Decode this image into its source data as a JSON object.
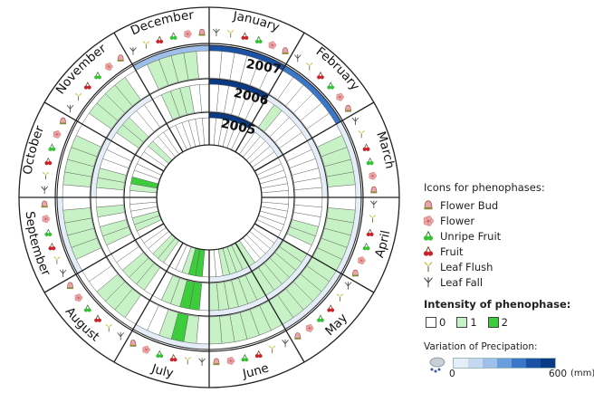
{
  "chart_data": {
    "type": "radial-heatmap",
    "title": "",
    "months": [
      "January",
      "February",
      "March",
      "April",
      "May",
      "June",
      "July",
      "August",
      "September",
      "October",
      "November",
      "December"
    ],
    "years": [
      "2005",
      "2006",
      "2007"
    ],
    "phenophases": [
      {
        "key": "flower_bud",
        "label": "Flower Bud",
        "icon": "flower-bud-icon",
        "color": "#e6a0a0"
      },
      {
        "key": "flower",
        "label": "Flower",
        "icon": "flower-icon",
        "color": "#f0a2a2"
      },
      {
        "key": "unripe_fruit",
        "label": "Unripe Fruit",
        "icon": "unripe-fruit-icon",
        "color": "#3cc23c"
      },
      {
        "key": "fruit",
        "label": "Fruit",
        "icon": "fruit-icon",
        "color": "#c8232b"
      },
      {
        "key": "leaf_flush",
        "label": "Leaf Flush",
        "icon": "leaf-flush-icon",
        "color": "#b6b45c"
      },
      {
        "key": "leaf_fall",
        "label": "Leaf Fall",
        "icon": "leaf-fall-icon",
        "color": "#555555"
      }
    ],
    "intensity": {
      "levels": [
        0,
        1,
        2
      ],
      "colors": [
        "#ffffff",
        "#c6f2c6",
        "#3ccc3c"
      ],
      "phenophase_order": [
        "leaf_fall",
        "leaf_flush",
        "fruit",
        "unripe_fruit",
        "flower",
        "flower_bud"
      ],
      "values": {
        "2005": [
          [
            0,
            0,
            0,
            0,
            0,
            0
          ],
          [
            0,
            0,
            0,
            0,
            0,
            0
          ],
          [
            0,
            0,
            0,
            0,
            0,
            0
          ],
          [
            0,
            0,
            0,
            0,
            0,
            0
          ],
          [
            0,
            0,
            0,
            0,
            0,
            1
          ],
          [
            1,
            1,
            1,
            1,
            0,
            0
          ],
          [
            0,
            2,
            2,
            1,
            0,
            0
          ],
          [
            0,
            1,
            1,
            0,
            0,
            0
          ],
          [
            0,
            1,
            1,
            0,
            0,
            0
          ],
          [
            0,
            1,
            2,
            0,
            0,
            0
          ],
          [
            0,
            0,
            1,
            0,
            0,
            0
          ],
          [
            0,
            0,
            0,
            0,
            0,
            0
          ]
        ],
        "2006": [
          [
            0,
            0,
            0,
            0,
            0,
            0
          ],
          [
            0,
            1,
            0,
            0,
            0,
            0
          ],
          [
            0,
            0,
            0,
            0,
            0,
            0
          ],
          [
            0,
            0,
            0,
            1,
            1,
            0
          ],
          [
            1,
            1,
            1,
            1,
            1,
            1
          ],
          [
            1,
            1,
            1,
            1,
            1,
            1
          ],
          [
            0,
            2,
            2,
            1,
            1,
            0
          ],
          [
            0,
            1,
            1,
            1,
            0,
            0
          ],
          [
            0,
            1,
            1,
            0,
            1,
            0
          ],
          [
            0,
            1,
            1,
            0,
            0,
            0
          ],
          [
            0,
            1,
            1,
            0,
            0,
            0
          ],
          [
            0,
            1,
            1,
            1,
            0,
            0
          ]
        ],
        "2007": [
          [
            0,
            0,
            0,
            0,
            0,
            0
          ],
          [
            0,
            0,
            0,
            0,
            0,
            0
          ],
          [
            0,
            1,
            1,
            1,
            1,
            0
          ],
          [
            0,
            1,
            1,
            1,
            1,
            1
          ],
          [
            1,
            1,
            1,
            1,
            1,
            1
          ],
          [
            1,
            1,
            1,
            1,
            1,
            1
          ],
          [
            0,
            1,
            2,
            1,
            0,
            0
          ],
          [
            0,
            1,
            1,
            1,
            0,
            0
          ],
          [
            0,
            1,
            1,
            1,
            1,
            0
          ],
          [
            0,
            1,
            1,
            1,
            1,
            0
          ],
          [
            0,
            1,
            1,
            1,
            1,
            0
          ],
          [
            0,
            1,
            1,
            1,
            1,
            0
          ]
        ]
      }
    },
    "precipitation": {
      "label": "Variation of Precipation:",
      "unit": "(mm)",
      "range": [
        0,
        600
      ],
      "scale_colors": [
        "#e4edf8",
        "#c4d8f2",
        "#9dbfe9",
        "#6a9ddc",
        "#3a77c8",
        "#1b52a3",
        "#0b3a85"
      ],
      "values_mm": {
        "2005": [
          550,
          30,
          0,
          0,
          10,
          70,
          0,
          0,
          0,
          0,
          0,
          0
        ],
        "2006": [
          520,
          40,
          5,
          0,
          40,
          10,
          0,
          0,
          0,
          30,
          40,
          0
        ],
        "2007": [
          480,
          420,
          60,
          10,
          80,
          0,
          20,
          0,
          5,
          0,
          0,
          200
        ]
      }
    }
  },
  "legend": {
    "phenophase_title": "Icons for phenophases:",
    "intensity_title": "Intensity of phenophase:",
    "intensity_labels": [
      "0",
      "1",
      "2"
    ],
    "precip_title": "Variation of Precipation:",
    "precip_min": "0",
    "precip_max": "600",
    "precip_unit": "(mm)"
  }
}
